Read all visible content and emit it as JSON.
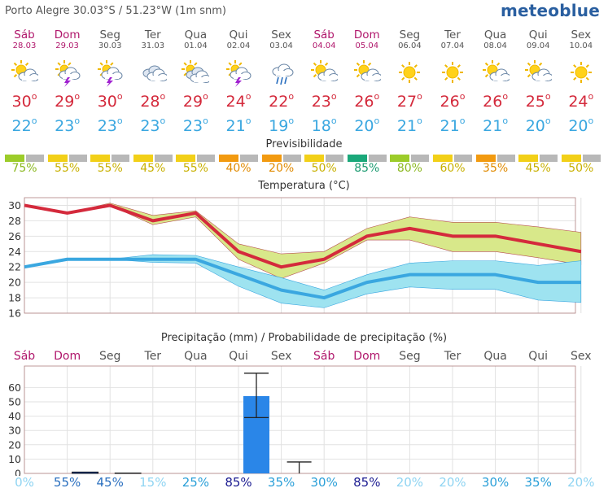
{
  "header": {
    "location": "Porto Alegre  30.03°S / 51.23°W (1m snm)",
    "logo": "meteoblue"
  },
  "days": [
    {
      "name": "Sáb",
      "date": "28.03",
      "weekend": true,
      "icon": "partly-cloudy-icon",
      "tmax": "30",
      "tmin": "22",
      "pred": "75%",
      "pred_color": "#9ccc2a"
    },
    {
      "name": "Dom",
      "date": "29.03",
      "weekend": true,
      "icon": "thunderstorm-sun-icon",
      "tmax": "29",
      "tmin": "23",
      "pred": "55%",
      "pred_color": "#f2d018"
    },
    {
      "name": "Seg",
      "date": "30.03",
      "weekend": false,
      "icon": "thunderstorm-sun-icon",
      "tmax": "30",
      "tmin": "23",
      "pred": "55%",
      "pred_color": "#f2d018"
    },
    {
      "name": "Ter",
      "date": "31.03",
      "weekend": false,
      "icon": "cloudy-icon",
      "tmax": "28",
      "tmin": "23",
      "pred": "45%",
      "pred_color": "#f2d018"
    },
    {
      "name": "Qua",
      "date": "01.04",
      "weekend": false,
      "icon": "cloudy-sun-icon",
      "tmax": "29",
      "tmin": "23",
      "pred": "55%",
      "pred_color": "#f2d018"
    },
    {
      "name": "Qui",
      "date": "02.04",
      "weekend": false,
      "icon": "thunderstorm-sun-icon",
      "tmax": "24",
      "tmin": "21",
      "pred": "40%",
      "pred_color": "#f29a10"
    },
    {
      "name": "Sex",
      "date": "03.04",
      "weekend": false,
      "icon": "rain-cloud-icon",
      "tmax": "22",
      "tmin": "19",
      "pred": "20%",
      "pred_color": "#f29a10"
    },
    {
      "name": "Sáb",
      "date": "04.04",
      "weekend": true,
      "icon": "partly-cloudy-icon",
      "tmax": "23",
      "tmin": "18",
      "pred": "50%",
      "pred_color": "#f2d018"
    },
    {
      "name": "Dom",
      "date": "05.04",
      "weekend": true,
      "icon": "partly-cloudy-icon",
      "tmax": "26",
      "tmin": "20",
      "pred": "85%",
      "pred_color": "#1aa87a"
    },
    {
      "name": "Seg",
      "date": "06.04",
      "weekend": false,
      "icon": "sunny-icon",
      "tmax": "27",
      "tmin": "21",
      "pred": "80%",
      "pred_color": "#9ccc2a"
    },
    {
      "name": "Ter",
      "date": "07.04",
      "weekend": false,
      "icon": "sunny-icon",
      "tmax": "26",
      "tmin": "21",
      "pred": "60%",
      "pred_color": "#f2d018"
    },
    {
      "name": "Qua",
      "date": "08.04",
      "weekend": false,
      "icon": "partly-cloudy-icon",
      "tmax": "26",
      "tmin": "21",
      "pred": "35%",
      "pred_color": "#f29a10"
    },
    {
      "name": "Qui",
      "date": "09.04",
      "weekend": false,
      "icon": "partly-cloudy-icon",
      "tmax": "25",
      "tmin": "20",
      "pred": "45%",
      "pred_color": "#f2d018"
    },
    {
      "name": "Sex",
      "date": "10.04",
      "weekend": false,
      "icon": "sunny-icon",
      "tmax": "24",
      "tmin": "20",
      "pred": "50%",
      "pred_color": "#f2d018"
    }
  ],
  "titles": {
    "predictability": "Previsibilidade",
    "temperature": "Temperatura (°C)",
    "precipitation": "Precipitação (mm) / Probabilidade de precipitação (%)"
  },
  "deg_symbol": "o",
  "chart_data": [
    {
      "type": "line",
      "title": "Temperatura (°C)",
      "x": [
        "28.03",
        "29.03",
        "30.03",
        "31.03",
        "01.04",
        "02.04",
        "03.04",
        "04.04",
        "05.04",
        "06.04",
        "07.04",
        "08.04",
        "09.04",
        "10.04"
      ],
      "ylim": [
        16,
        31
      ],
      "yticks": [
        16,
        18,
        20,
        22,
        24,
        26,
        28,
        30
      ],
      "series": [
        {
          "values": [
            30,
            29,
            30,
            28,
            29,
            24,
            22,
            23,
            26,
            27,
            26,
            26,
            25,
            24
          ],
          "color": "#d42a3c",
          "band_low": [
            30,
            29,
            30,
            27.5,
            28.5,
            23,
            20.5,
            22.5,
            25.5,
            25.5,
            24,
            24,
            23.2,
            22.3
          ],
          "band_high": [
            30,
            29,
            30.3,
            28.7,
            29.3,
            25,
            23.7,
            24,
            27,
            28.5,
            27.8,
            27.8,
            27.2,
            26.5
          ],
          "band_color": "#d8e88a"
        },
        {
          "values": [
            22,
            23,
            23,
            23,
            23,
            21,
            19,
            18,
            20,
            21,
            21,
            21,
            20,
            20
          ],
          "color": "#3aa7e0",
          "band_low": [
            22,
            23,
            23,
            22.6,
            22.5,
            19.5,
            17.3,
            16.7,
            18.5,
            19.4,
            19.1,
            19.1,
            17.7,
            17.4
          ],
          "band_high": [
            22,
            23,
            23,
            23.6,
            23.5,
            22,
            20.6,
            19,
            21,
            22.5,
            22.8,
            22.8,
            22.2,
            22.8
          ],
          "band_color": "#9ee3f0"
        }
      ]
    },
    {
      "type": "bar",
      "title": "Precipitação (mm) / Probabilidade de precipitação (%)",
      "categories": [
        "Sáb",
        "Dom",
        "Seg",
        "Ter",
        "Qua",
        "Qui",
        "Sex",
        "Sáb",
        "Dom",
        "Seg",
        "Ter",
        "Qua",
        "Qui",
        "Sex"
      ],
      "values": [
        0,
        1,
        0.3,
        0,
        0,
        54,
        0,
        0,
        0,
        0,
        0,
        0,
        0,
        0
      ],
      "error_low": [
        0,
        1,
        0.3,
        0,
        0,
        39,
        0,
        0,
        0,
        0,
        0,
        0,
        0,
        0
      ],
      "error_high": [
        0,
        1,
        0.3,
        0,
        0,
        70,
        8,
        0,
        0,
        0,
        0,
        0,
        0,
        0
      ],
      "ylim": [
        0,
        75
      ],
      "yticks": [
        0,
        10,
        20,
        30,
        40,
        50,
        60
      ],
      "probabilities": [
        "0%",
        "55%",
        "45%",
        "15%",
        "25%",
        "85%",
        "35%",
        "30%",
        "85%",
        "20%",
        "20%",
        "30%",
        "35%",
        "20%"
      ],
      "probability_colors": [
        "#8fd4f2",
        "#2a6fbf",
        "#2a6fbf",
        "#8fd4f2",
        "#2a9fd8",
        "#1a1a90",
        "#2a9fd8",
        "#2a9fd8",
        "#1a1a90",
        "#8fd4f2",
        "#8fd4f2",
        "#2a9fd8",
        "#2a9fd8",
        "#8fd4f2"
      ],
      "bar_color": "#2a86e8"
    }
  ]
}
